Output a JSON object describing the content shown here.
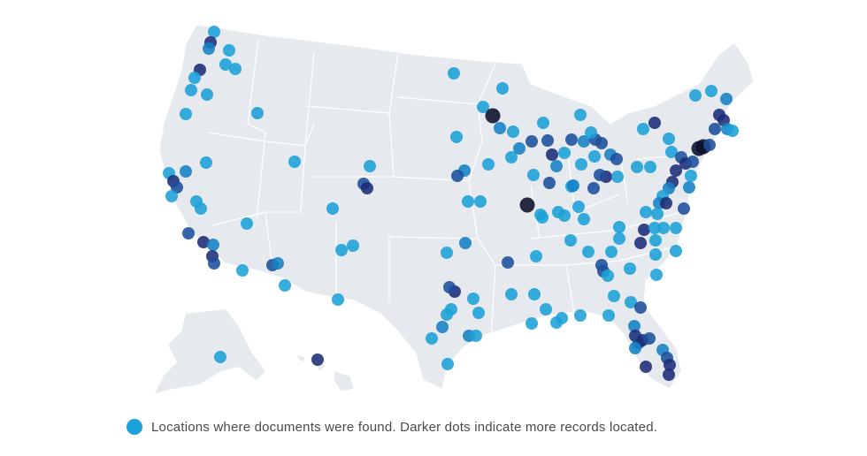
{
  "legend": {
    "text": "Locations where documents were found. Darker dots indicate more records located."
  }
}
